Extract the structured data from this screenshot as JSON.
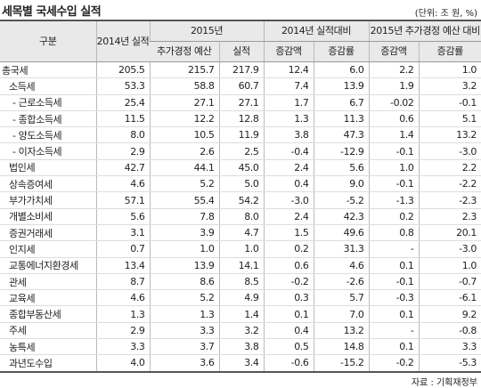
{
  "title": "세목별 국세수입 실적",
  "unit": "(단위: 조 원, %)",
  "header": {
    "row1": [
      "구분",
      "2014년 실적",
      "2015년",
      "2014년 실적대비",
      "2015년 추가경정 예산 대비"
    ],
    "row2": [
      "추가경정 예산",
      "실적",
      "증감액",
      "증감률",
      "증감액",
      "증감률"
    ]
  },
  "table": {
    "rows": [
      [
        "총국세",
        "205.5",
        "215.7",
        "217.9",
        "12.4",
        "6.0",
        "2.2",
        "1.0"
      ],
      [
        "소득세",
        "53.3",
        "58.8",
        "60.7",
        "7.4",
        "13.9",
        "1.9",
        "3.2"
      ],
      [
        "- 근로소득세",
        "25.4",
        "27.1",
        "27.1",
        "1.7",
        "6.7",
        "-0.02",
        "-0.1"
      ],
      [
        "- 종합소득세",
        "11.5",
        "12.2",
        "12.8",
        "1.3",
        "11.3",
        "0.6",
        "5.1"
      ],
      [
        "- 양도소득세",
        "8.0",
        "10.5",
        "11.9",
        "3.8",
        "47.3",
        "1.4",
        "13.2"
      ],
      [
        "- 이자소득세",
        "2.9",
        "2.6",
        "2.5",
        "-0.4",
        "-12.9",
        "-0.1",
        "-3.0"
      ],
      [
        "법인세",
        "42.7",
        "44.1",
        "45.0",
        "2.4",
        "5.6",
        "1.0",
        "2.2"
      ],
      [
        "상속증여세",
        "4.6",
        "5.2",
        "5.0",
        "0.4",
        "9.0",
        "-0.1",
        "-2.2"
      ],
      [
        "부가가치세",
        "57.1",
        "55.4",
        "54.2",
        "-3.0",
        "-5.2",
        "-1.3",
        "-2.3"
      ],
      [
        "개별소비세",
        "5.6",
        "7.8",
        "8.0",
        "2.4",
        "42.3",
        "0.2",
        "2.3"
      ],
      [
        "증권거래세",
        "3.1",
        "3.9",
        "4.7",
        "1.5",
        "49.6",
        "0.8",
        "20.1"
      ],
      [
        "인지세",
        "0.7",
        "1.0",
        "1.0",
        "0.2",
        "31.3",
        "-",
        "-3.0"
      ],
      [
        "교통에너지환경세",
        "13.4",
        "13.9",
        "14.1",
        "0.6",
        "4.6",
        "0.1",
        "1.0"
      ],
      [
        "관세",
        "8.7",
        "8.6",
        "8.5",
        "-0.2",
        "-2.6",
        "-0.1",
        "-0.7"
      ],
      [
        "교육세",
        "4.6",
        "5.2",
        "4.9",
        "0.3",
        "5.7",
        "-0.3",
        "-6.1"
      ],
      [
        "종합부동산세",
        "1.3",
        "1.3",
        "1.4",
        "0.1",
        "7.0",
        "0.1",
        "9.2"
      ],
      [
        "주세",
        "2.9",
        "3.3",
        "3.2",
        "0.4",
        "13.2",
        "-",
        "-0.8"
      ],
      [
        "농특세",
        "3.3",
        "3.7",
        "3.8",
        "0.5",
        "14.8",
        "0.1",
        "3.3"
      ],
      [
        "과년도수입",
        "4.0",
        "3.6",
        "3.4",
        "-0.6",
        "-15.2",
        "-0.2",
        "-5.3"
      ]
    ]
  },
  "source": "자료 : 기획재정부"
}
